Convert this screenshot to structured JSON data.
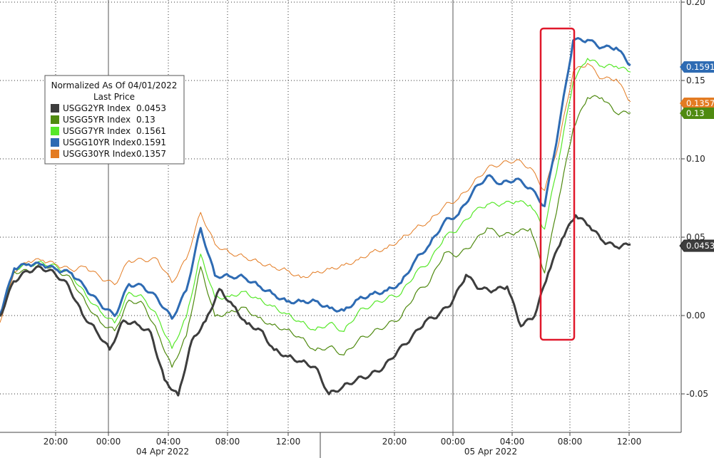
{
  "chart_data": {
    "type": "line",
    "legend": {
      "title_line1": "Normalized As Of 04/01/2022",
      "title_line2": "Last Price",
      "placement": "top-left"
    },
    "y_axis": {
      "ylim": [
        -0.075,
        0.2
      ],
      "ticks": [
        {
          "value": 0.2,
          "label": "0.20"
        },
        {
          "value": 0.15,
          "label": "0.15"
        },
        {
          "value": 0.1,
          "label": "0.10"
        },
        {
          "value": 0.05,
          "label": "0.05"
        },
        {
          "value": 0.0,
          "label": "0.00"
        },
        {
          "value": -0.05,
          "label": "-0.05"
        }
      ],
      "grid": true
    },
    "x_axis": {
      "tick_labels": [
        "20:00",
        "00:00",
        "04:00",
        "08:00",
        "12:00",
        "20:00",
        "00:00",
        "04:00",
        "08:00",
        "12:00"
      ],
      "day_labels": [
        "04 Apr 2022",
        "05 Apr 2022"
      ],
      "grid": true
    },
    "highlight_box_color": "#e0182b",
    "series": [
      {
        "name": "USGG2YR Index",
        "last": "0.0453",
        "color": "#3d3d3d",
        "values": [
          0.0,
          0.022,
          0.028,
          0.03,
          0.026,
          0.018,
          0.0,
          -0.01,
          -0.022,
          -0.003,
          -0.005,
          -0.01,
          -0.04,
          -0.05,
          -0.015,
          -0.003,
          0.017,
          0.006,
          -0.006,
          -0.01,
          -0.023,
          -0.027,
          -0.03,
          -0.033,
          -0.05,
          -0.045,
          -0.04,
          -0.037,
          -0.032,
          -0.022,
          -0.014,
          -0.004,
          0.0,
          0.008,
          0.025,
          0.016,
          0.015,
          0.018,
          -0.007,
          0.0,
          0.028,
          0.05,
          0.065,
          0.058,
          0.048,
          0.044,
          0.0453
        ]
      },
      {
        "name": "USGG5YR Index",
        "last": "0.13",
        "color": "#4f8a10",
        "values": [
          0.0,
          0.028,
          0.028,
          0.032,
          0.028,
          0.022,
          0.007,
          -0.005,
          -0.01,
          0.01,
          0.008,
          -0.01,
          -0.032,
          -0.012,
          0.032,
          0.0,
          0.002,
          0.005,
          -0.002,
          -0.007,
          -0.01,
          -0.015,
          -0.023,
          -0.02,
          -0.025,
          -0.015,
          -0.01,
          -0.005,
          0.0,
          0.015,
          0.022,
          0.04,
          0.038,
          0.045,
          0.055,
          0.05,
          0.052,
          0.055,
          0.027,
          0.075,
          0.12,
          0.14,
          0.14,
          0.13,
          0.13
        ]
      },
      {
        "name": "USGG7YR Index",
        "last": "0.1561",
        "color": "#57e82a",
        "values": [
          0.0,
          0.03,
          0.032,
          0.033,
          0.03,
          0.025,
          0.012,
          0.002,
          -0.005,
          0.015,
          0.012,
          0.0,
          -0.02,
          0.0,
          0.04,
          0.012,
          0.012,
          0.015,
          0.01,
          0.005,
          0.0,
          -0.005,
          -0.01,
          -0.005,
          -0.01,
          0.003,
          0.008,
          0.012,
          0.015,
          0.028,
          0.035,
          0.05,
          0.055,
          0.065,
          0.07,
          0.07,
          0.072,
          0.07,
          0.055,
          0.1,
          0.15,
          0.165,
          0.16,
          0.16,
          0.1561
        ]
      },
      {
        "name": "USGG10YR Index",
        "last": "0.1591",
        "color": "#2e6bb3",
        "values": [
          0.0,
          0.03,
          0.033,
          0.033,
          0.03,
          0.028,
          0.018,
          0.008,
          0.0,
          0.02,
          0.018,
          0.01,
          -0.003,
          0.015,
          0.055,
          0.025,
          0.025,
          0.025,
          0.02,
          0.015,
          0.01,
          0.01,
          0.01,
          0.005,
          0.003,
          0.01,
          0.013,
          0.015,
          0.02,
          0.035,
          0.045,
          0.06,
          0.065,
          0.08,
          0.09,
          0.085,
          0.088,
          0.082,
          0.07,
          0.12,
          0.175,
          0.175,
          0.17,
          0.17,
          0.1591
        ]
      },
      {
        "name": "USGG30YR Index",
        "last": "0.1357",
        "color": "#e37b22",
        "values": [
          -0.005,
          0.028,
          0.035,
          0.036,
          0.033,
          0.03,
          0.032,
          0.025,
          0.02,
          0.035,
          0.035,
          0.035,
          0.02,
          0.035,
          0.065,
          0.045,
          0.04,
          0.038,
          0.035,
          0.032,
          0.03,
          0.025,
          0.028,
          0.03,
          0.032,
          0.035,
          0.04,
          0.042,
          0.048,
          0.055,
          0.06,
          0.07,
          0.075,
          0.085,
          0.095,
          0.098,
          0.1,
          0.095,
          0.08,
          0.11,
          0.155,
          0.16,
          0.15,
          0.15,
          0.1357
        ]
      }
    ],
    "end_tags": [
      {
        "series": "USGG10YR Index",
        "label": "0.1591",
        "value": 0.1591
      },
      {
        "series": "USGG30YR Index",
        "label": "0.1357",
        "value": 0.1357
      },
      {
        "series": "USGG5YR Index",
        "label": "0.13",
        "value": 0.13
      },
      {
        "series": "USGG2YR Index",
        "label": "0.0453",
        "value": 0.0453
      }
    ]
  }
}
